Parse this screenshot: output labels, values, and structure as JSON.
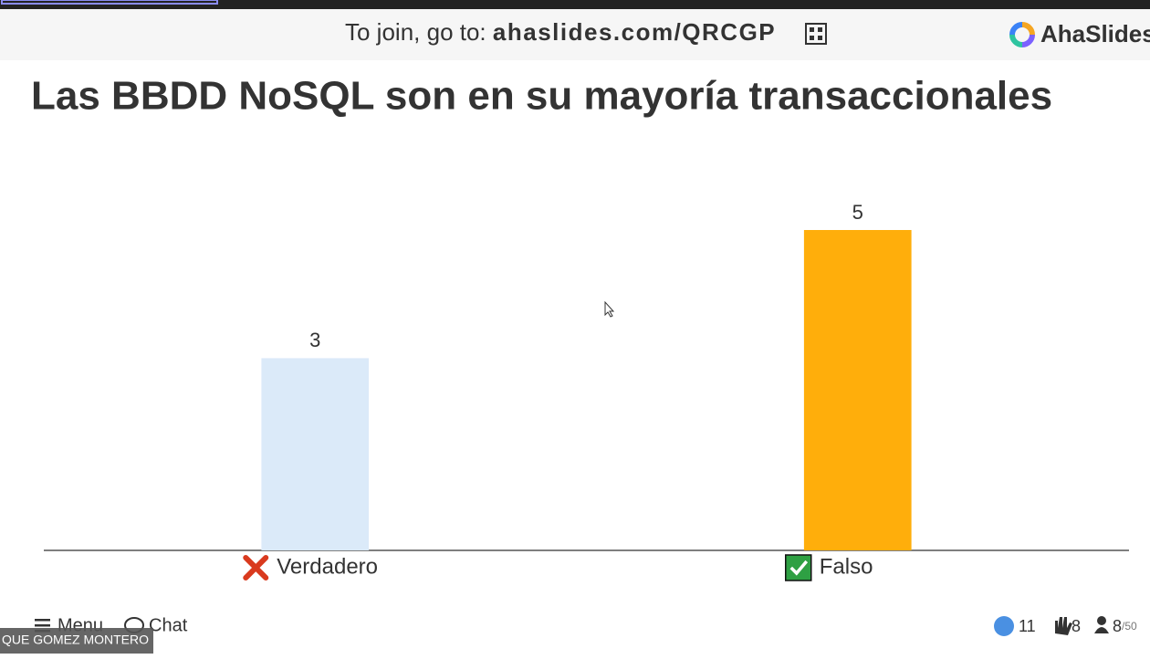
{
  "header": {
    "join_prefix": "To join, go to:",
    "join_url": "ahaslides.com/QRCGP",
    "brand": "AhaSlides"
  },
  "chart_data": {
    "type": "bar",
    "title": "Las BBDD NoSQL son en su mayoría transaccionales",
    "categories": [
      "Verdadero",
      "Falso"
    ],
    "values": [
      3,
      5
    ],
    "colors": [
      "#dbeaf9",
      "#ffae0b"
    ],
    "correct": [
      false,
      true
    ]
  },
  "footer": {
    "menu": "Menu",
    "chat": "Chat",
    "likes": "11",
    "hands": "8",
    "participants": "8",
    "participants_total": "/50",
    "presenter_name": "QUE GOMEZ MONTERO"
  }
}
